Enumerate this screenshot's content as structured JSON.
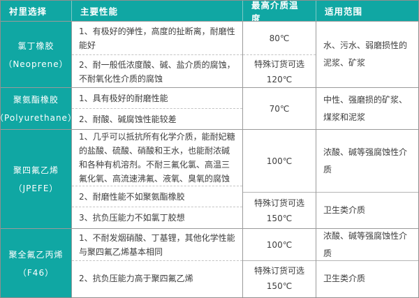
{
  "table": {
    "accent_color": "#10a7a3",
    "border_color": "#9a9a9a",
    "header": {
      "lining": "衬里选择",
      "performance": "主要性能",
      "max_temp": "最高介质温度",
      "scope": "适用范围"
    },
    "rows": [
      {
        "lining_name": "氯丁橡胶",
        "lining_sub": "（Neoprene）",
        "performance": [
          "1、有极好的弹性，高度的扯断离，耐磨性能好",
          "2、耐一般低浓度酸、碱、盐介质的腐蚀，不耐氧化性介质的腐蚀"
        ],
        "temps": [
          [
            "80℃"
          ],
          [
            "特殊订货可选",
            "120℃"
          ]
        ],
        "scopes": [
          "水、污水、弱磨损性的泥浆、矿浆"
        ]
      },
      {
        "lining_name": "聚氨酯橡胶",
        "lining_sub": "（Polyurethane）",
        "performance": [
          "1、具有极好的耐磨性能",
          "2、耐酸、碱腐蚀性能较差"
        ],
        "temps": [
          [
            "70℃"
          ]
        ],
        "scopes": [
          "中性、强磨损的矿浆、煤浆和泥浆"
        ]
      },
      {
        "lining_name": "聚四氟乙烯",
        "lining_sub": "（JPEFE）",
        "performance": [
          "1、几乎可以抵抗所有化学介质，能耐妃糖的盐酸、硫酸、硝酸和王水，也能耐浓碱和各种有机溶剂。不耐三氟化氯、高温三氟化氧、高流速沸氟、液氧、臭氧的腐蚀",
          "2、耐磨性能不如聚氨酯橡胶",
          "3、抗负压能力不如氯丁胶想"
        ],
        "temps": [
          [
            "100℃"
          ],
          [
            "特殊订货可选",
            "150℃"
          ]
        ],
        "scopes": [
          "浓酸、碱等强腐蚀性介质",
          "卫生类介质"
        ]
      },
      {
        "lining_name": "聚全氟乙丙烯",
        "lining_sub": "（F46）",
        "performance": [
          "1、不耐发烟硝酸、丁基锂，其他化学性能与聚四氟乙烯基本相同",
          "2、抗负压能力高于聚四氟乙烯"
        ],
        "temps": [
          [
            "100℃"
          ],
          [
            "特殊订货可选",
            "150℃"
          ]
        ],
        "scopes": [
          "浓酸、碱等强腐蚀性介质",
          "卫生类介质"
        ]
      }
    ]
  }
}
